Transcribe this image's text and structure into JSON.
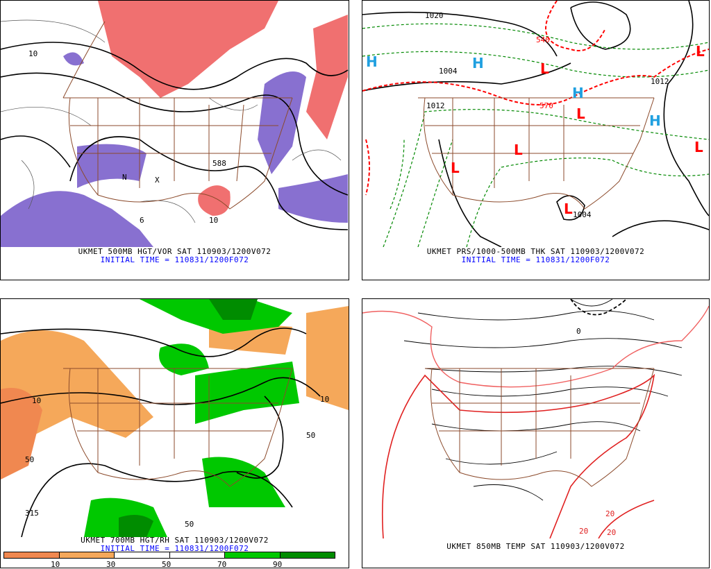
{
  "panels": [
    {
      "title": "UKMET 500MB HGT/VOR SAT 110903/1200V072",
      "subtitle": "INITIAL TIME = 110831/1200F072",
      "contour_labels": [
        "10",
        "588",
        "6",
        "N",
        "X",
        "10"
      ]
    },
    {
      "title": "UKMET PRS/1000-500MB THK SAT 110903/1200V072",
      "subtitle": "INITIAL TIME = 110831/1200F072",
      "contour_labels": [
        "1020",
        "1012",
        "1004",
        "540",
        "570",
        "1012",
        "1004"
      ],
      "markers": [
        "H",
        "H",
        "H",
        "H",
        "L",
        "L",
        "L",
        "L",
        "L",
        "L",
        "L"
      ]
    },
    {
      "title": "UKMET 700MB HGT/RH SAT 110903/1200V072",
      "subtitle": "INITIAL TIME = 110831/1200F072",
      "contour_labels": [
        "10",
        "50",
        "315",
        "50",
        "10",
        "50"
      ],
      "colorbar": {
        "labels": [
          "10",
          "30",
          "50",
          "70",
          "90"
        ],
        "colors": [
          "#f08850",
          "#f5a85a",
          "#ffffff",
          "#ffffff",
          "#00c800",
          "#008c00"
        ]
      }
    },
    {
      "title": "UKMET 850MB TEMP SAT 110903/1200V072",
      "contour_labels": [
        "0",
        "20",
        "20",
        "20"
      ]
    }
  ],
  "colors": {
    "border": "#8b4a2b",
    "vort_pos": "#f07070",
    "vort_neg": "#8870d0",
    "high": "#20a0e0",
    "low": "#ff0000",
    "thickness": "#008800",
    "text_blue": "#0000ff"
  }
}
